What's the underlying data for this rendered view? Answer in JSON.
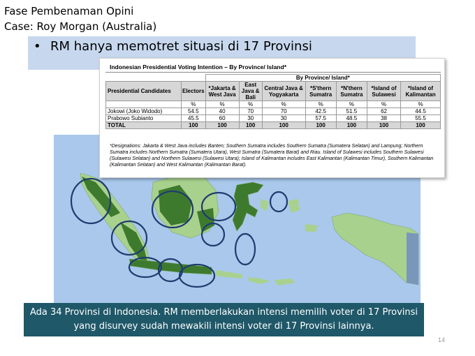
{
  "header": {
    "line1": "Fase Pembenaman Opini",
    "line2": "Case: Roy Morgan (Australia)"
  },
  "bullet": {
    "symbol": "•",
    "text": "RM hanya memotret situasi di 17 Provinsi"
  },
  "table": {
    "title": "Indonesian Presidential Voting Intention – By Province/ Island*",
    "group_header": "By Province/ Island*",
    "columns": [
      "Presidential Candidates",
      "Electors",
      "*Jakarta & West Java",
      "East Java & Bali",
      "Central Java & Yogyakarta",
      "*S'thern Sumatra",
      "*N'thern Sumatra",
      "*Island of Sulawesi",
      "*Island of Kalimantan"
    ],
    "units": [
      "",
      "%",
      "%",
      "%",
      "%",
      "%",
      "%",
      "%",
      "%"
    ],
    "rows": [
      [
        "Jokowi (Joko Widodo)",
        "54.5",
        "40",
        "70",
        "70",
        "42.5",
        "51.5",
        "62",
        "44.5"
      ],
      [
        "Prabowo Subianto",
        "45.5",
        "60",
        "30",
        "30",
        "57.5",
        "48.5",
        "38",
        "55.5"
      ],
      [
        "TOTAL",
        "100",
        "100",
        "100",
        "100",
        "100",
        "100",
        "100",
        "100"
      ]
    ],
    "note": "*Designations: Jakarta & West Java includes Banten; Southern Sumatra includes Southern Sumatra (Sumatera Selatan) and Lampung; Northern Sumatra includes Northern Sumatra (Sumatera Utara), West Sumatra (Sumatera Barat) and Riau. Island of Sulawesi includes Southern Sulawesi (Sulawesi Selatan) and Northern Sulawesi (Sulawesi Utara); Island of Kalimantan includes East Kalimantan (Kalimantan Timur), Southern Kalimantan (Kalimantan Selatan) and West Kalimantan (Kalimantan Barat)."
  },
  "map": {
    "sea_color": "#a9c8ec",
    "land_color": "#a9d18e",
    "highlight_color": "#3d7a2e",
    "circle_color": "#1f3c6e"
  },
  "caption": {
    "text": "Ada 34 Provinsi di Indonesia. RM memberlakukan intensi memilih voter di 17 Provinsi yang disurvey sudah mewakili intensi voter di 17 Provinsi lainnya."
  },
  "page_number": "14"
}
